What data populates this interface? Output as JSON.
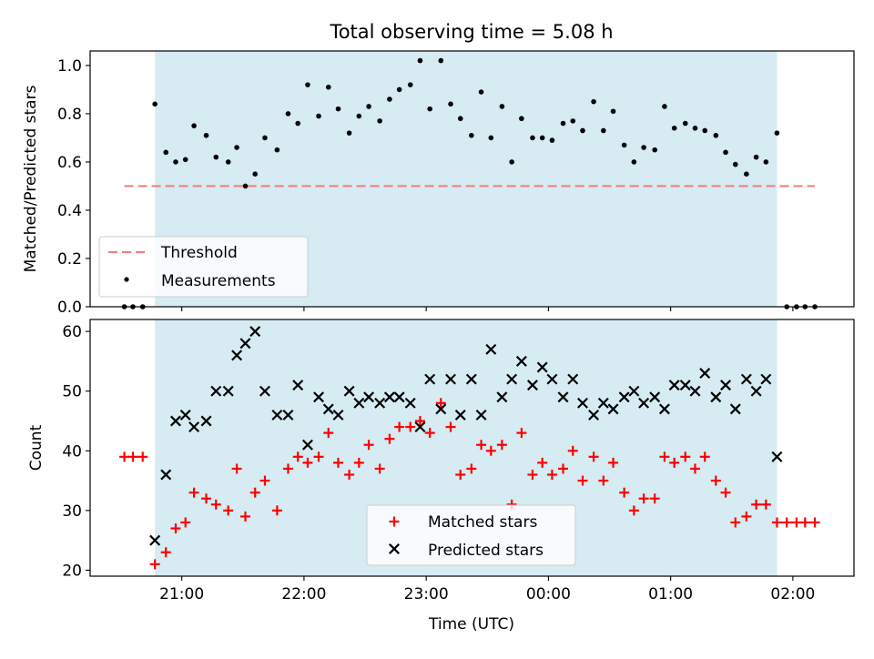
{
  "title": "Total observing time = 5.08 h",
  "colors": {
    "observing_band": "#add8e6",
    "threshold": "#f08080",
    "matched": "#ff0000",
    "predicted": "#000000",
    "measurement": "#000000"
  },
  "chart_data": [
    {
      "type": "scatter",
      "title": "Total observing time = 5.08 h",
      "xlabel": "",
      "ylabel": "Matched/Predicted stars",
      "ylim": [
        0.0,
        1.06
      ],
      "yticks": [
        0.0,
        0.2,
        0.4,
        0.6,
        0.8,
        1.0
      ],
      "ytick_labels": [
        "0.0",
        "0.2",
        "0.4",
        "0.6",
        "0.8",
        "1.0"
      ],
      "x_unit": "hours after 21:00 UTC",
      "xlim": [
        -0.75,
        5.5
      ],
      "observing_window": [
        -0.22,
        4.87
      ],
      "legend": {
        "placement": "lower-left",
        "entries": [
          "Threshold",
          "Measurements"
        ]
      },
      "threshold": {
        "name": "Threshold",
        "value": 0.5,
        "x_range": [
          -0.47,
          5.18
        ]
      },
      "measurements": {
        "name": "Measurements",
        "x": [
          -0.47,
          -0.4,
          -0.32,
          -0.22,
          -0.13,
          -0.05,
          0.03,
          0.1,
          0.2,
          0.28,
          0.38,
          0.45,
          0.52,
          0.6,
          0.68,
          0.78,
          0.87,
          0.95,
          1.03,
          1.12,
          1.2,
          1.28,
          1.37,
          1.45,
          1.53,
          1.62,
          1.7,
          1.78,
          1.87,
          1.95,
          2.03,
          2.12,
          2.2,
          2.28,
          2.37,
          2.45,
          2.53,
          2.62,
          2.7,
          2.78,
          2.87,
          2.95,
          3.03,
          3.12,
          3.2,
          3.28,
          3.37,
          3.45,
          3.53,
          3.62,
          3.7,
          3.78,
          3.87,
          3.95,
          4.03,
          4.12,
          4.2,
          4.28,
          4.37,
          4.45,
          4.53,
          4.62,
          4.7,
          4.78,
          4.87,
          4.95,
          5.03,
          5.1,
          5.18
        ],
        "y": [
          0.0,
          0.0,
          0.0,
          0.84,
          0.64,
          0.6,
          0.61,
          0.75,
          0.71,
          0.62,
          0.6,
          0.66,
          0.5,
          0.55,
          0.7,
          0.65,
          0.8,
          0.76,
          0.92,
          0.79,
          0.91,
          0.82,
          0.72,
          0.79,
          0.83,
          0.77,
          0.86,
          0.9,
          0.92,
          1.02,
          0.82,
          1.02,
          0.84,
          0.78,
          0.71,
          0.89,
          0.7,
          0.83,
          0.6,
          0.78,
          0.7,
          0.7,
          0.69,
          0.76,
          0.77,
          0.73,
          0.85,
          0.73,
          0.81,
          0.67,
          0.6,
          0.66,
          0.65,
          0.83,
          0.74,
          0.76,
          0.74,
          0.73,
          0.71,
          0.64,
          0.59,
          0.55,
          0.62,
          0.6,
          0.72,
          0.0,
          0.0,
          0.0,
          0.0
        ]
      }
    },
    {
      "type": "scatter",
      "title": "",
      "xlabel": "Time (UTC)",
      "ylabel": "Count",
      "ylim": [
        19,
        62
      ],
      "yticks": [
        20,
        30,
        40,
        50,
        60
      ],
      "ytick_labels": [
        "20",
        "30",
        "40",
        "50",
        "60"
      ],
      "x_unit": "hours after 21:00 UTC",
      "xlim": [
        -0.75,
        5.5
      ],
      "xticks": [
        0,
        1,
        2,
        3,
        4,
        5
      ],
      "xtick_labels": [
        "21:00",
        "22:00",
        "23:00",
        "00:00",
        "01:00",
        "02:00"
      ],
      "observing_window": [
        -0.22,
        4.87
      ],
      "legend": {
        "placement": "lower-center",
        "entries": [
          "Matched stars",
          "Predicted stars"
        ]
      },
      "series": [
        {
          "name": "Matched stars",
          "marker": "plus",
          "x": [
            -0.47,
            -0.4,
            -0.32,
            -0.22,
            -0.13,
            -0.05,
            0.03,
            0.1,
            0.2,
            0.28,
            0.38,
            0.45,
            0.52,
            0.6,
            0.68,
            0.78,
            0.87,
            0.95,
            1.03,
            1.12,
            1.2,
            1.28,
            1.37,
            1.45,
            1.53,
            1.62,
            1.7,
            1.78,
            1.87,
            1.95,
            2.03,
            2.12,
            2.2,
            2.28,
            2.37,
            2.45,
            2.53,
            2.62,
            2.7,
            2.78,
            2.87,
            2.95,
            3.03,
            3.12,
            3.2,
            3.28,
            3.37,
            3.45,
            3.53,
            3.62,
            3.7,
            3.78,
            3.87,
            3.95,
            4.03,
            4.12,
            4.2,
            4.28,
            4.37,
            4.45,
            4.53,
            4.62,
            4.7,
            4.78,
            4.87,
            4.95,
            5.03,
            5.1,
            5.18
          ],
          "y": [
            39,
            39,
            39,
            21,
            23,
            27,
            28,
            33,
            32,
            31,
            30,
            37,
            29,
            33,
            35,
            30,
            37,
            39,
            38,
            39,
            43,
            38,
            36,
            38,
            41,
            37,
            42,
            44,
            44,
            45,
            43,
            48,
            44,
            36,
            37,
            41,
            40,
            41,
            31,
            43,
            36,
            38,
            36,
            37,
            40,
            35,
            39,
            35,
            38,
            33,
            30,
            32,
            32,
            39,
            38,
            39,
            37,
            39,
            35,
            33,
            28,
            29,
            31,
            31,
            28,
            28,
            28,
            28,
            28
          ]
        },
        {
          "name": "Predicted stars",
          "marker": "x",
          "x": [
            -0.22,
            -0.13,
            -0.05,
            0.03,
            0.1,
            0.2,
            0.28,
            0.38,
            0.45,
            0.52,
            0.6,
            0.68,
            0.78,
            0.87,
            0.95,
            1.03,
            1.12,
            1.2,
            1.28,
            1.37,
            1.45,
            1.53,
            1.62,
            1.7,
            1.78,
            1.87,
            1.95,
            2.03,
            2.12,
            2.2,
            2.28,
            2.37,
            2.45,
            2.53,
            2.62,
            2.7,
            2.78,
            2.87,
            2.95,
            3.03,
            3.12,
            3.2,
            3.28,
            3.37,
            3.45,
            3.53,
            3.62,
            3.7,
            3.78,
            3.87,
            3.95,
            4.03,
            4.12,
            4.2,
            4.28,
            4.37,
            4.45,
            4.53,
            4.62,
            4.7,
            4.78,
            4.87
          ],
          "y": [
            25,
            36,
            45,
            46,
            44,
            45,
            50,
            50,
            56,
            58,
            60,
            50,
            46,
            46,
            51,
            41,
            49,
            47,
            46,
            50,
            48,
            49,
            48,
            49,
            49,
            48,
            44,
            52,
            47,
            52,
            46,
            52,
            46,
            57,
            49,
            52,
            55,
            51,
            54,
            52,
            49,
            52,
            48,
            46,
            48,
            47,
            49,
            50,
            48,
            49,
            47,
            51,
            51,
            50,
            53,
            49,
            51,
            47,
            52,
            50,
            52,
            39
          ]
        }
      ]
    }
  ]
}
